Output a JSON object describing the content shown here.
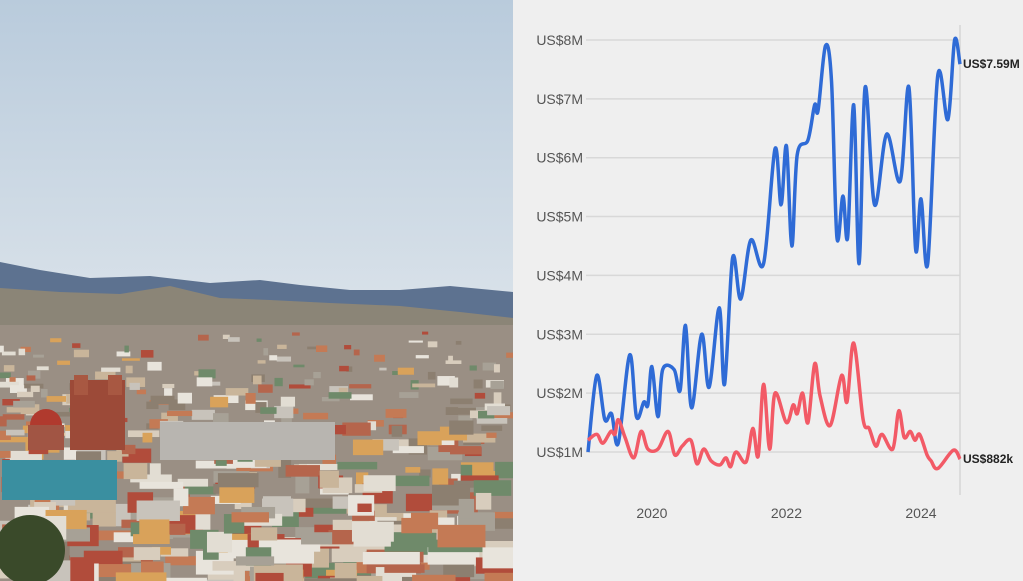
{
  "photo": {
    "description_icon": "city-landscape-photo"
  },
  "chart_data": {
    "type": "line",
    "title": "",
    "xlabel": "",
    "ylabel": "",
    "xlim": [
      2019.05,
      2024.58
    ],
    "ylim": [
      0.6,
      8.2
    ],
    "x_ticks": [
      2020,
      2022,
      2024
    ],
    "x_tick_labels": [
      "2020",
      "2022",
      "2024"
    ],
    "y_ticks": [
      1,
      2,
      3,
      4,
      5,
      6,
      7,
      8
    ],
    "y_tick_labels": [
      "US$1M",
      "US$2M",
      "US$3M",
      "US$4M",
      "US$5M",
      "US$6M",
      "US$7M",
      "US$8M"
    ],
    "grid": "horizontal",
    "series": [
      {
        "color": "#2f6bd6",
        "end_label": "US$7.59M",
        "points": [
          [
            2019.05,
            1.0
          ],
          [
            2019.18,
            2.3
          ],
          [
            2019.3,
            1.55
          ],
          [
            2019.4,
            1.65
          ],
          [
            2019.5,
            1.15
          ],
          [
            2019.67,
            2.65
          ],
          [
            2019.77,
            1.6
          ],
          [
            2019.88,
            1.85
          ],
          [
            2019.94,
            1.8
          ],
          [
            2020.0,
            2.45
          ],
          [
            2020.09,
            1.6
          ],
          [
            2020.16,
            2.4
          ],
          [
            2020.33,
            2.4
          ],
          [
            2020.42,
            2.05
          ],
          [
            2020.5,
            3.15
          ],
          [
            2020.59,
            1.75
          ],
          [
            2020.74,
            3.0
          ],
          [
            2020.85,
            2.1
          ],
          [
            2021.0,
            3.45
          ],
          [
            2021.08,
            2.15
          ],
          [
            2021.2,
            4.3
          ],
          [
            2021.32,
            3.6
          ],
          [
            2021.47,
            4.6
          ],
          [
            2021.66,
            4.2
          ],
          [
            2021.83,
            6.15
          ],
          [
            2021.92,
            5.2
          ],
          [
            2022.0,
            6.2
          ],
          [
            2022.08,
            4.5
          ],
          [
            2022.16,
            6.05
          ],
          [
            2022.32,
            6.3
          ],
          [
            2022.42,
            6.9
          ],
          [
            2022.47,
            6.8
          ],
          [
            2022.58,
            7.9
          ],
          [
            2022.67,
            7.3
          ],
          [
            2022.75,
            4.65
          ],
          [
            2022.84,
            5.35
          ],
          [
            2022.91,
            4.65
          ],
          [
            2023.0,
            6.9
          ],
          [
            2023.08,
            4.2
          ],
          [
            2023.17,
            7.2
          ],
          [
            2023.31,
            5.2
          ],
          [
            2023.49,
            6.4
          ],
          [
            2023.69,
            5.6
          ],
          [
            2023.82,
            7.2
          ],
          [
            2023.92,
            4.45
          ],
          [
            2024.0,
            5.3
          ],
          [
            2024.1,
            4.2
          ],
          [
            2024.25,
            7.4
          ],
          [
            2024.4,
            6.65
          ],
          [
            2024.5,
            8.0
          ],
          [
            2024.58,
            7.59
          ]
        ]
      },
      {
        "color": "#f25a66",
        "end_label": "US$882k",
        "points": [
          [
            2019.05,
            1.2
          ],
          [
            2019.18,
            1.3
          ],
          [
            2019.27,
            1.15
          ],
          [
            2019.39,
            1.35
          ],
          [
            2019.45,
            1.3
          ],
          [
            2019.5,
            1.55
          ],
          [
            2019.6,
            1.25
          ],
          [
            2019.73,
            0.9
          ],
          [
            2019.84,
            1.35
          ],
          [
            2019.94,
            1.05
          ],
          [
            2020.09,
            1.05
          ],
          [
            2020.24,
            1.35
          ],
          [
            2020.34,
            0.95
          ],
          [
            2020.45,
            1.1
          ],
          [
            2020.58,
            1.2
          ],
          [
            2020.67,
            0.8
          ],
          [
            2020.77,
            1.05
          ],
          [
            2020.88,
            0.85
          ],
          [
            2021.01,
            0.78
          ],
          [
            2021.1,
            0.9
          ],
          [
            2021.17,
            0.75
          ],
          [
            2021.25,
            1.0
          ],
          [
            2021.4,
            0.83
          ],
          [
            2021.5,
            1.4
          ],
          [
            2021.58,
            0.93
          ],
          [
            2021.66,
            2.15
          ],
          [
            2021.75,
            1.05
          ],
          [
            2021.83,
            2.0
          ],
          [
            2022.0,
            1.5
          ],
          [
            2022.1,
            1.8
          ],
          [
            2022.16,
            1.65
          ],
          [
            2022.24,
            2.0
          ],
          [
            2022.32,
            1.5
          ],
          [
            2022.42,
            2.5
          ],
          [
            2022.5,
            1.95
          ],
          [
            2022.65,
            1.45
          ],
          [
            2022.82,
            2.3
          ],
          [
            2022.9,
            1.85
          ],
          [
            2023.0,
            2.85
          ],
          [
            2023.14,
            1.55
          ],
          [
            2023.23,
            1.4
          ],
          [
            2023.33,
            1.1
          ],
          [
            2023.42,
            1.3
          ],
          [
            2023.58,
            1.05
          ],
          [
            2023.67,
            1.7
          ],
          [
            2023.75,
            1.25
          ],
          [
            2023.84,
            1.35
          ],
          [
            2023.91,
            1.2
          ],
          [
            2023.98,
            1.3
          ],
          [
            2024.09,
            0.95
          ],
          [
            2024.15,
            0.85
          ],
          [
            2024.25,
            0.72
          ],
          [
            2024.48,
            1.03
          ],
          [
            2024.58,
            0.88
          ]
        ]
      }
    ]
  }
}
